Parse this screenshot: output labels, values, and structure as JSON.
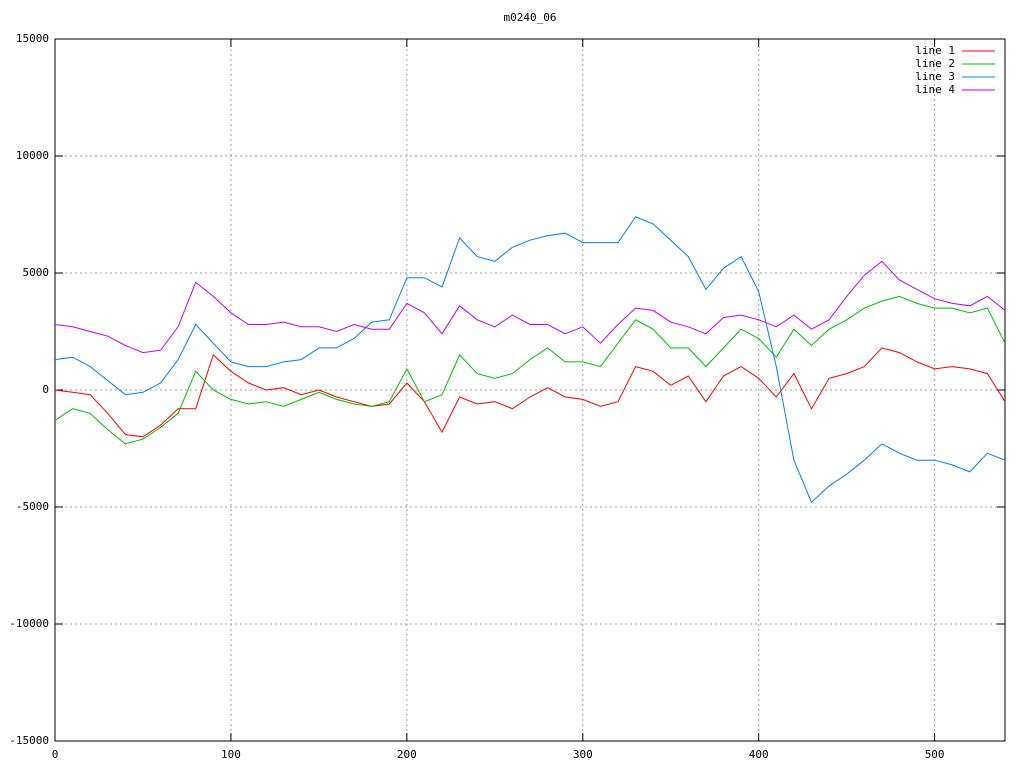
{
  "chart_data": {
    "type": "line",
    "title": "m0240_06",
    "x": [
      0,
      10,
      20,
      30,
      40,
      50,
      60,
      70,
      80,
      90,
      100,
      110,
      120,
      130,
      140,
      150,
      160,
      170,
      180,
      190,
      200,
      210,
      220,
      230,
      240,
      250,
      260,
      270,
      280,
      290,
      300,
      310,
      320,
      330,
      340,
      350,
      360,
      370,
      380,
      390,
      400,
      410,
      420,
      430,
      440,
      450,
      460,
      470,
      480,
      490,
      500,
      510,
      520,
      530,
      540
    ],
    "series": [
      {
        "name": "line 1",
        "color": "#ff0000",
        "values": [
          0,
          -100,
          -200,
          -1000,
          -1900,
          -2000,
          -1500,
          -800,
          -800,
          1500,
          800,
          300,
          0,
          100,
          -200,
          0,
          -300,
          -500,
          -700,
          -600,
          300,
          -500,
          -1800,
          -300,
          -600,
          -500,
          -800,
          -300,
          100,
          -300,
          -400,
          -700,
          -500,
          1000,
          800,
          200,
          600,
          -500,
          600,
          1000,
          500,
          -300,
          700,
          -800,
          500,
          700,
          1000,
          1800,
          1600,
          1200,
          900,
          1000,
          900,
          700,
          -500
        ]
      },
      {
        "name": "line 2",
        "color": "#00c000",
        "values": [
          -1300,
          -800,
          -1000,
          -1700,
          -2300,
          -2100,
          -1600,
          -1000,
          800,
          0,
          -400,
          -600,
          -500,
          -700,
          -400,
          -100,
          -400,
          -600,
          -700,
          -500,
          900,
          -500,
          -200,
          1500,
          700,
          500,
          700,
          1300,
          1800,
          1200,
          1200,
          1000,
          2000,
          3000,
          2600,
          1800,
          1800,
          1000,
          1800,
          2600,
          2200,
          1400,
          2600,
          1900,
          2600,
          3000,
          3500,
          3800,
          4000,
          3700,
          3500,
          3500,
          3300,
          3500,
          2000
        ]
      },
      {
        "name": "line 3",
        "color": "#0080ff",
        "values": [
          1300,
          1400,
          1000,
          400,
          -200,
          -100,
          300,
          1300,
          2800,
          2000,
          1200,
          1000,
          1000,
          1200,
          1300,
          1800,
          1800,
          2200,
          2900,
          3000,
          4800,
          4800,
          4400,
          6500,
          5700,
          5500,
          6100,
          6400,
          6600,
          6700,
          6300,
          6300,
          6300,
          7400,
          7100,
          6400,
          5700,
          4300,
          5200,
          5700,
          4200,
          1000,
          -3000,
          -4800,
          -4100,
          -3600,
          -3000,
          -2300,
          -2700,
          -3000,
          -3000,
          -3200,
          -3500,
          -2700,
          -3000
        ]
      },
      {
        "name": "line 4",
        "color": "#c000ff",
        "values": [
          2800,
          2700,
          2500,
          2300,
          1900,
          1600,
          1700,
          2700,
          4600,
          4000,
          3300,
          2800,
          2800,
          2900,
          2700,
          2700,
          2500,
          2800,
          2600,
          2600,
          3700,
          3300,
          2400,
          3600,
          3000,
          2700,
          3200,
          2800,
          2800,
          2400,
          2700,
          2000,
          2800,
          3500,
          3400,
          2900,
          2700,
          2400,
          3100,
          3200,
          3000,
          2700,
          3200,
          2600,
          3000,
          4000,
          4900,
          5500,
          4700,
          4300,
          3900,
          3700,
          3600,
          4000,
          3400
        ]
      }
    ],
    "xlim": [
      0,
      540
    ],
    "ylim": [
      -15000,
      15000
    ],
    "xticks": [
      0,
      100,
      200,
      300,
      400,
      500
    ],
    "yticks": [
      -15000,
      -10000,
      -5000,
      0,
      5000,
      10000,
      15000
    ],
    "grid": true,
    "legend": "top right"
  }
}
